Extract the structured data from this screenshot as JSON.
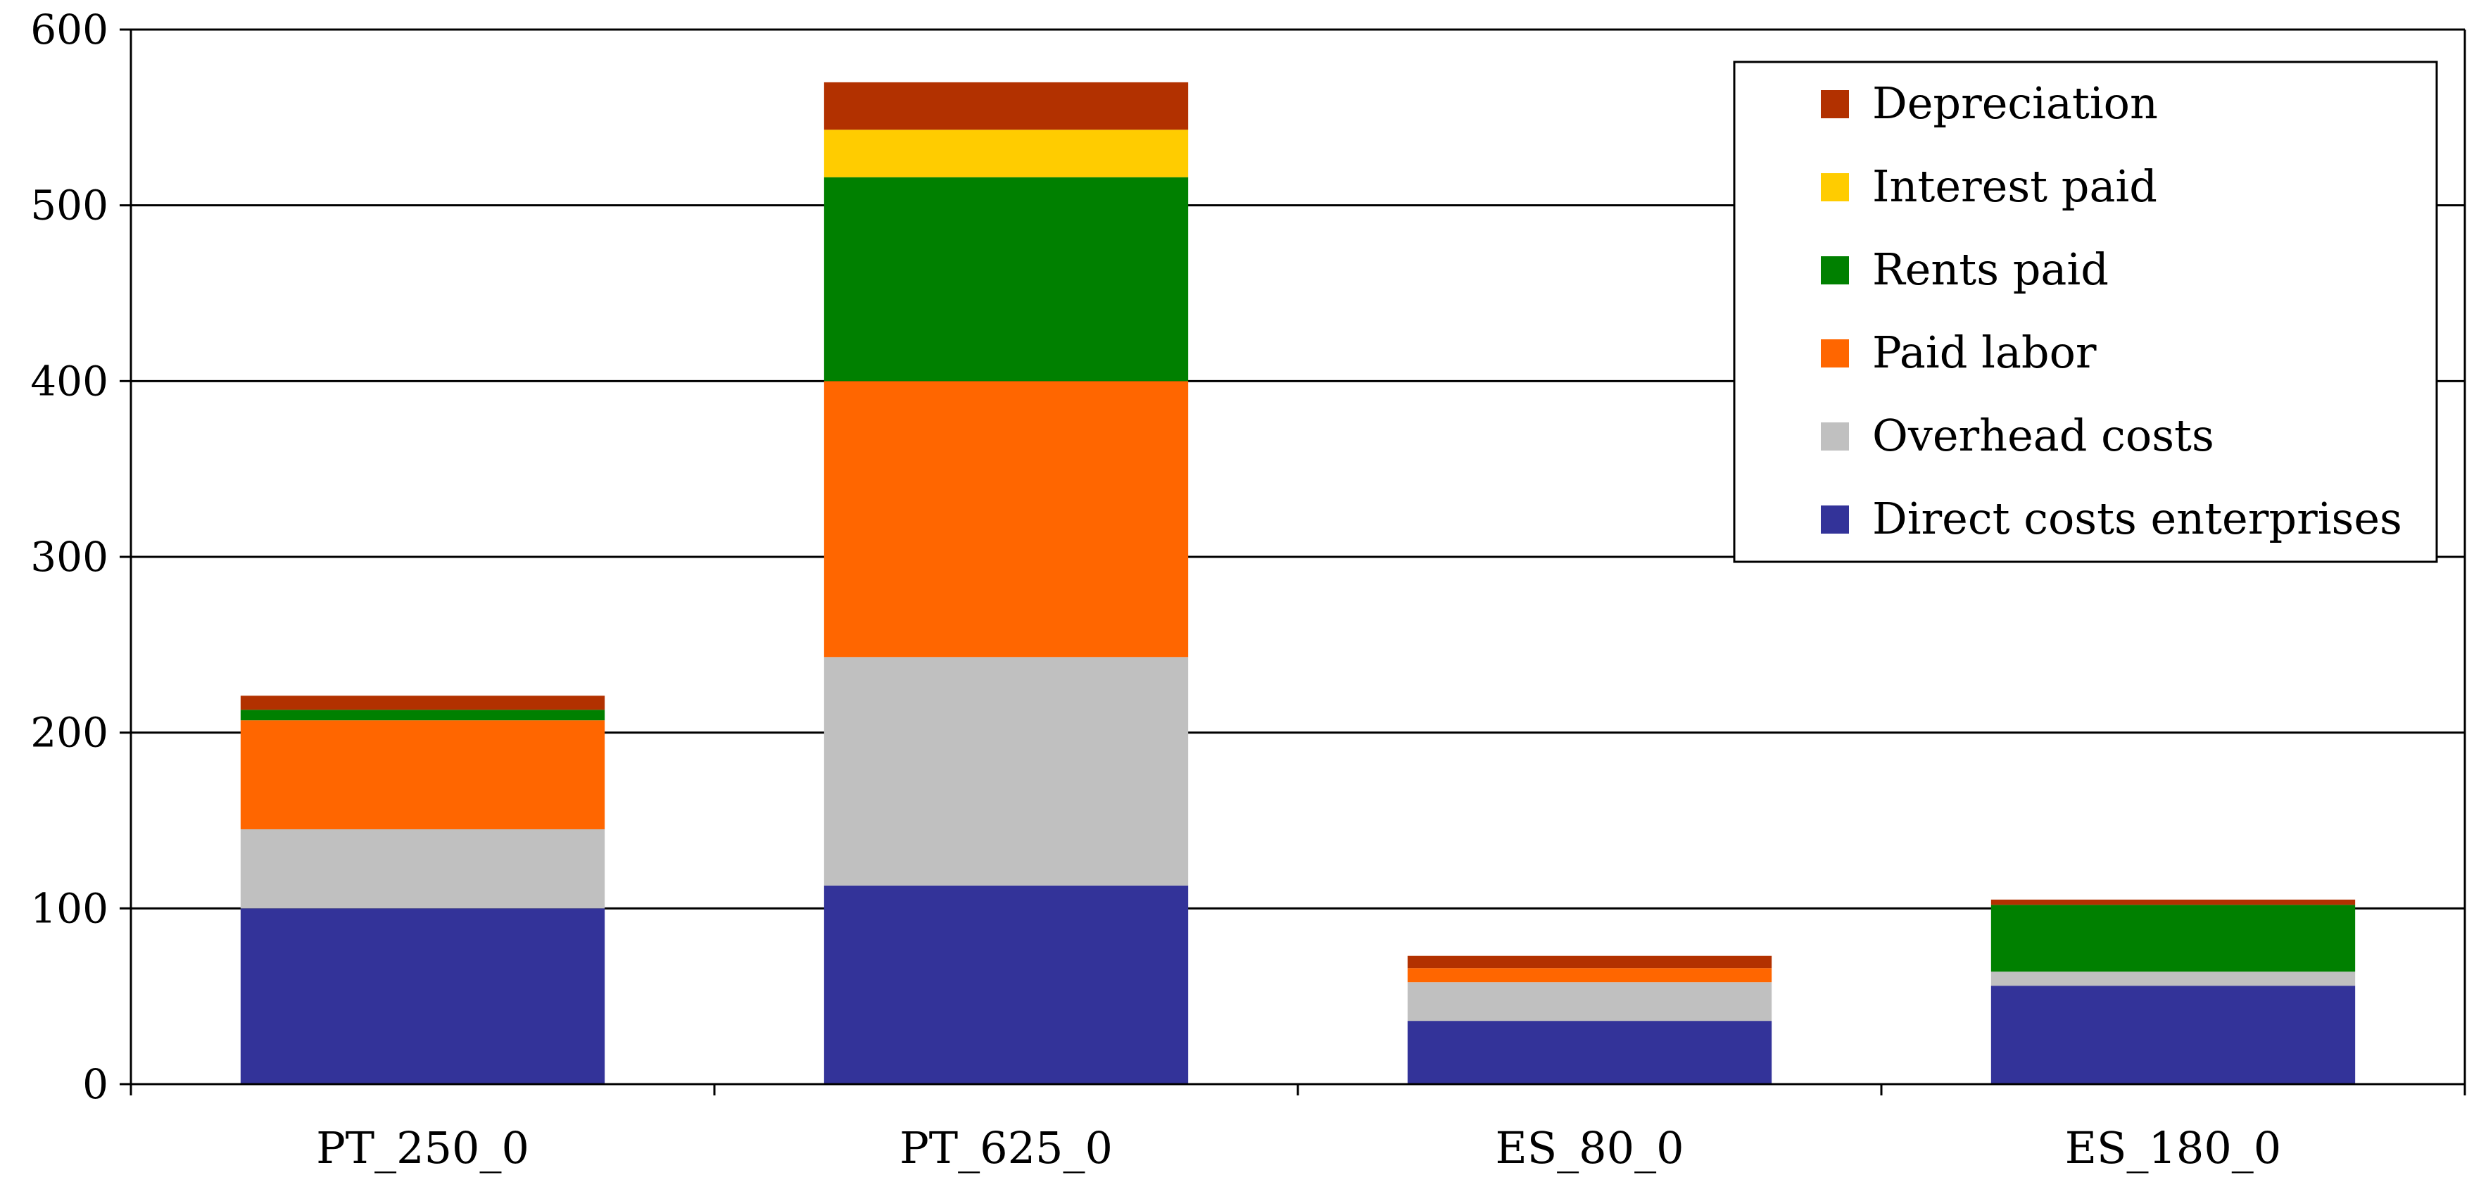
{
  "chart_data": {
    "type": "bar",
    "stacked": true,
    "categories": [
      "PT_250_0",
      "PT_625_0",
      "ES_80_0",
      "ES_180_0"
    ],
    "series": [
      {
        "name": "Direct costs enterprises",
        "color": "#333399",
        "values": [
          100,
          113,
          36,
          56
        ]
      },
      {
        "name": "Overhead costs",
        "color": "#C0C0C0",
        "values": [
          45,
          130,
          22,
          8
        ]
      },
      {
        "name": "Paid labor",
        "color": "#FF6600",
        "values": [
          62,
          157,
          8,
          0
        ]
      },
      {
        "name": "Rents paid",
        "color": "#008000",
        "values": [
          6,
          116,
          0,
          38
        ]
      },
      {
        "name": "Interest paid",
        "color": "#FFCC00",
        "values": [
          0,
          27,
          0,
          0
        ]
      },
      {
        "name": "Depreciation",
        "color": "#B23100",
        "values": [
          8,
          27,
          7,
          3
        ]
      }
    ],
    "ylim": [
      0,
      600
    ],
    "yticks": [
      0,
      100,
      200,
      300,
      400,
      500,
      600
    ],
    "grid": true,
    "legend_position": "top-right"
  }
}
